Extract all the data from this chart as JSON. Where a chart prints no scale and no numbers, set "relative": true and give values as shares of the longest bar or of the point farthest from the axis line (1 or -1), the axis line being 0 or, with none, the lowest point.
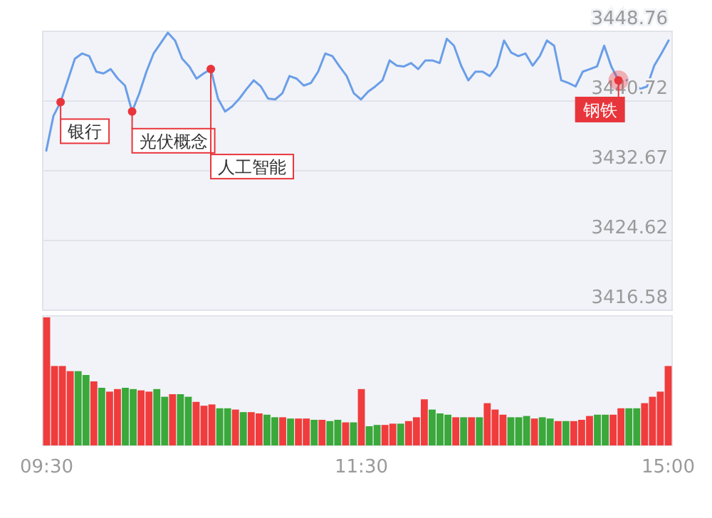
{
  "chart_data": [
    {
      "type": "line",
      "ylim": [
        3416.58,
        3448.76
      ],
      "yticks": [
        3416.58,
        3424.62,
        3432.67,
        3440.72,
        3448.76
      ],
      "grid": "y",
      "tick_labels": "y",
      "categories": [
        null,
        null,
        null,
        null,
        null,
        null,
        null,
        null,
        null,
        null,
        null,
        null,
        null,
        null,
        null,
        null,
        null,
        null,
        null,
        null,
        null,
        null,
        null,
        null,
        null,
        null,
        null,
        null,
        null,
        null,
        null,
        null,
        null,
        null,
        null,
        null,
        null,
        null,
        null,
        null,
        null,
        null,
        null,
        null,
        null,
        null,
        null,
        null,
        null,
        null,
        null,
        null,
        null,
        null,
        null,
        null,
        null,
        null,
        null,
        null,
        null,
        null,
        null,
        null,
        null,
        null,
        null,
        null,
        null,
        null,
        null,
        null,
        null,
        null,
        null,
        null,
        null,
        null,
        null,
        null,
        null,
        null,
        null,
        null,
        null,
        null,
        null,
        null
      ],
      "series": [
        {
          "color": "#6a9ee8",
          "values": [
            3435.0,
            3439.0,
            3440.6,
            3443.1,
            3445.6,
            3446.2,
            3445.9,
            3444.1,
            3443.9,
            3444.4,
            3443.3,
            3442.5,
            3439.5,
            3441.6,
            3444.1,
            3446.2,
            3447.4,
            3448.6,
            3447.7,
            3445.6,
            3444.7,
            3443.3,
            3443.9,
            3444.4,
            3441.0,
            3439.5,
            3440.1,
            3441.0,
            3442.1,
            3443.1,
            3442.4,
            3441.0,
            3440.9,
            3441.6,
            3443.6,
            3443.3,
            3442.5,
            3442.8,
            3444.1,
            3446.2,
            3445.9,
            3444.7,
            3443.6,
            3441.6,
            3440.9,
            3441.8,
            3442.4,
            3443.1,
            3445.4,
            3444.8,
            3444.7,
            3445.1,
            3444.4,
            3445.4,
            3445.4,
            3445.1,
            3447.9,
            3447.1,
            3444.8,
            3443.1,
            3444.1,
            3444.1,
            3443.6,
            3444.7,
            3447.7,
            3446.3,
            3445.9,
            3446.2,
            3444.8,
            3445.9,
            3447.7,
            3447.1,
            3443.1,
            3442.8,
            3442.4,
            3444.1,
            3444.4,
            3444.7,
            3447.1,
            3444.7,
            3443.1,
            3443.1,
            3443.1,
            3442.1,
            3442.4,
            3444.8,
            3446.2,
            3447.7
          ]
        },
        {
          "type": "scatter",
          "color": "#e8353b",
          "values": [
            null,
            null,
            3440.6,
            null,
            null,
            null,
            null,
            null,
            null,
            null,
            null,
            null,
            3439.5,
            null,
            null,
            null,
            null,
            null,
            null,
            null,
            null,
            null,
            null,
            3444.4,
            null,
            null,
            null,
            null,
            null,
            null,
            null,
            null,
            null,
            null,
            null,
            null,
            null,
            null,
            null,
            null,
            null,
            null,
            null,
            null,
            null,
            null,
            null,
            null,
            null,
            null,
            null,
            null,
            null,
            null,
            null,
            null,
            null,
            null,
            null,
            null,
            null,
            null,
            null,
            null,
            null,
            null,
            null,
            null,
            null,
            null,
            null,
            null,
            null,
            null,
            null,
            null,
            null,
            null,
            null,
            null,
            3443.1,
            null,
            null,
            null,
            null,
            null,
            null,
            null
          ]
        }
      ],
      "annotations": [
        "银行",
        "光伏概念",
        "人工智能",
        "钢铁"
      ]
    },
    {
      "type": "bar",
      "relative": true,
      "tick_labels": "x",
      "categories": [
        "09:30",
        null,
        null,
        null,
        null,
        null,
        null,
        null,
        null,
        null,
        null,
        null,
        null,
        null,
        null,
        null,
        null,
        null,
        null,
        null,
        null,
        null,
        null,
        null,
        null,
        null,
        null,
        null,
        null,
        null,
        null,
        null,
        null,
        null,
        null,
        null,
        null,
        null,
        null,
        null,
        "11:30",
        null,
        null,
        null,
        null,
        null,
        null,
        null,
        null,
        null,
        null,
        null,
        null,
        null,
        null,
        null,
        null,
        null,
        null,
        null,
        null,
        null,
        null,
        null,
        null,
        null,
        null,
        null,
        null,
        null,
        null,
        null,
        null,
        null,
        null,
        null,
        null,
        null,
        null,
        "15:00"
      ],
      "values": [
        1.0,
        0.62,
        0.62,
        0.58,
        0.58,
        0.55,
        0.5,
        0.45,
        0.42,
        0.44,
        0.45,
        0.44,
        0.43,
        0.42,
        0.44,
        0.38,
        0.4,
        0.4,
        0.38,
        0.34,
        0.31,
        0.32,
        0.29,
        0.29,
        0.28,
        0.26,
        0.26,
        0.25,
        0.24,
        0.22,
        0.22,
        0.21,
        0.21,
        0.21,
        0.2,
        0.2,
        0.19,
        0.2,
        0.18,
        0.18,
        0.44,
        0.15,
        0.16,
        0.16,
        0.17,
        0.17,
        0.19,
        0.22,
        0.36,
        0.28,
        0.25,
        0.24,
        0.22,
        0.22,
        0.22,
        0.22,
        0.33,
        0.28,
        0.24,
        0.22,
        0.22,
        0.23,
        0.21,
        0.22,
        0.21,
        0.19,
        0.19,
        0.19,
        0.2,
        0.23,
        0.24,
        0.24,
        0.24,
        0.29,
        0.29,
        0.29,
        0.33,
        0.38,
        0.42,
        0.62
      ],
      "colors": [
        "#f03c3c",
        "#f03c3c",
        "#f03c3c",
        "#f03c3c",
        "#3aa83a",
        "#3aa83a",
        "#f03c3c",
        "#3aa83a",
        "#f03c3c",
        "#f03c3c",
        "#3aa83a",
        "#3aa83a",
        "#f03c3c",
        "#f03c3c",
        "#3aa83a",
        "#3aa83a",
        "#f03c3c",
        "#3aa83a",
        "#3aa83a",
        "#f03c3c",
        "#f03c3c",
        "#f03c3c",
        "#3aa83a",
        "#3aa83a",
        "#f03c3c",
        "#3aa83a",
        "#f03c3c",
        "#f03c3c",
        "#3aa83a",
        "#3aa83a",
        "#f03c3c",
        "#3aa83a",
        "#f03c3c",
        "#f03c3c",
        "#3aa83a",
        "#f03c3c",
        "#3aa83a",
        "#3aa83a",
        "#f03c3c",
        "#3aa83a",
        "#f03c3c",
        "#3aa83a",
        "#3aa83a",
        "#f03c3c",
        "#f03c3c",
        "#3aa83a",
        "#f03c3c",
        "#f03c3c",
        "#f03c3c",
        "#3aa83a",
        "#3aa83a",
        "#3aa83a",
        "#f03c3c",
        "#3aa83a",
        "#f03c3c",
        "#3aa83a",
        "#f03c3c",
        "#f03c3c",
        "#f03c3c",
        "#3aa83a",
        "#3aa83a",
        "#3aa83a",
        "#f03c3c",
        "#3aa83a",
        "#3aa83a",
        "#f03c3c",
        "#3aa83a",
        "#f03c3c",
        "#f03c3c",
        "#f03c3c",
        "#3aa83a",
        "#3aa83a",
        "#f03c3c",
        "#f03c3c",
        "#3aa83a",
        "#3aa83a",
        "#f03c3c",
        "#f03c3c",
        "#f03c3c",
        "#f03c3c"
      ]
    }
  ]
}
